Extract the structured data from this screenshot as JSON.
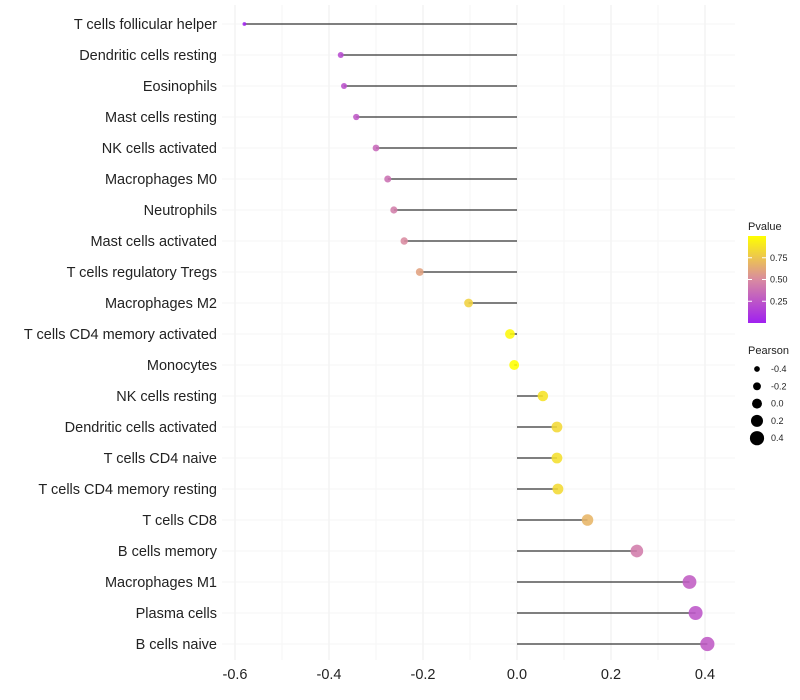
{
  "chart_data": {
    "type": "lollipop",
    "title": "",
    "xlabel": "",
    "ylabel": "",
    "xlim": [
      -0.6,
      0.4
    ],
    "xticks": [
      -0.6,
      -0.4,
      -0.2,
      0.0,
      0.2,
      0.4
    ],
    "xtick_labels": [
      "-0.6",
      "-0.4",
      "-0.2",
      "0.0",
      "0.2",
      "0.4"
    ],
    "grid": true,
    "points": [
      {
        "label": "T cells follicular helper",
        "pearson": -0.58,
        "pvalue": 0.01
      },
      {
        "label": "Dendritic cells resting",
        "pearson": -0.375,
        "pvalue": 0.2
      },
      {
        "label": "Eosinophils",
        "pearson": -0.368,
        "pvalue": 0.23
      },
      {
        "label": "Mast cells resting",
        "pearson": -0.342,
        "pvalue": 0.26
      },
      {
        "label": "NK cells activated",
        "pearson": -0.3,
        "pvalue": 0.34
      },
      {
        "label": "Macrophages M0",
        "pearson": -0.275,
        "pvalue": 0.38
      },
      {
        "label": "Neutrophils",
        "pearson": -0.262,
        "pvalue": 0.44
      },
      {
        "label": "Mast cells activated",
        "pearson": -0.24,
        "pvalue": 0.5
      },
      {
        "label": "T cells regulatory  Tregs ",
        "pearson": -0.207,
        "pvalue": 0.6
      },
      {
        "label": "Macrophages M2",
        "pearson": -0.103,
        "pvalue": 0.8
      },
      {
        "label": "T cells CD4 memory activated",
        "pearson": -0.015,
        "pvalue": 0.97
      },
      {
        "label": "Monocytes",
        "pearson": -0.006,
        "pvalue": 1.0
      },
      {
        "label": "NK cells resting",
        "pearson": 0.055,
        "pvalue": 0.88
      },
      {
        "label": "Dendritic cells activated",
        "pearson": 0.085,
        "pvalue": 0.83
      },
      {
        "label": "T cells CD4 naive",
        "pearson": 0.085,
        "pvalue": 0.86
      },
      {
        "label": "T cells CD4 memory resting",
        "pearson": 0.087,
        "pvalue": 0.84
      },
      {
        "label": "T cells CD8",
        "pearson": 0.15,
        "pvalue": 0.68
      },
      {
        "label": "B cells memory",
        "pearson": 0.255,
        "pvalue": 0.43
      },
      {
        "label": "Macrophages M1",
        "pearson": 0.367,
        "pvalue": 0.28
      },
      {
        "label": "Plasma cells",
        "pearson": 0.38,
        "pvalue": 0.25
      },
      {
        "label": "B cells naive",
        "pearson": 0.405,
        "pvalue": 0.27
      }
    ],
    "legend": {
      "color": {
        "title": "Pvalue",
        "ticks": [
          0.25,
          0.5,
          0.75
        ],
        "tick_labels": [
          "0.25",
          "0.50",
          "0.75"
        ],
        "range": [
          0.0,
          1.0
        ],
        "low_color": "#a020f0",
        "mid_color": "#d98ba0",
        "high_color": "#ffff00"
      },
      "size": {
        "title": "Pearson",
        "values": [
          -0.4,
          -0.2,
          0.0,
          0.2,
          0.4
        ],
        "labels": [
          "-0.4",
          "-0.2",
          "0.0",
          "0.2",
          "0.4"
        ]
      }
    }
  }
}
